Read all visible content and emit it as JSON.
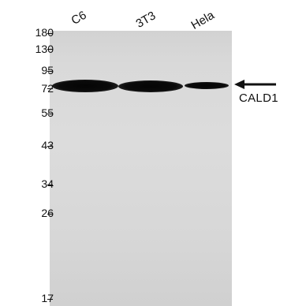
{
  "lanes": [
    "C6",
    "3T3",
    "Hela"
  ],
  "markers": [
    "180",
    "130",
    "95",
    "72",
    "55",
    "43",
    "34",
    "26",
    "17"
  ],
  "target_label": "CALD1"
}
